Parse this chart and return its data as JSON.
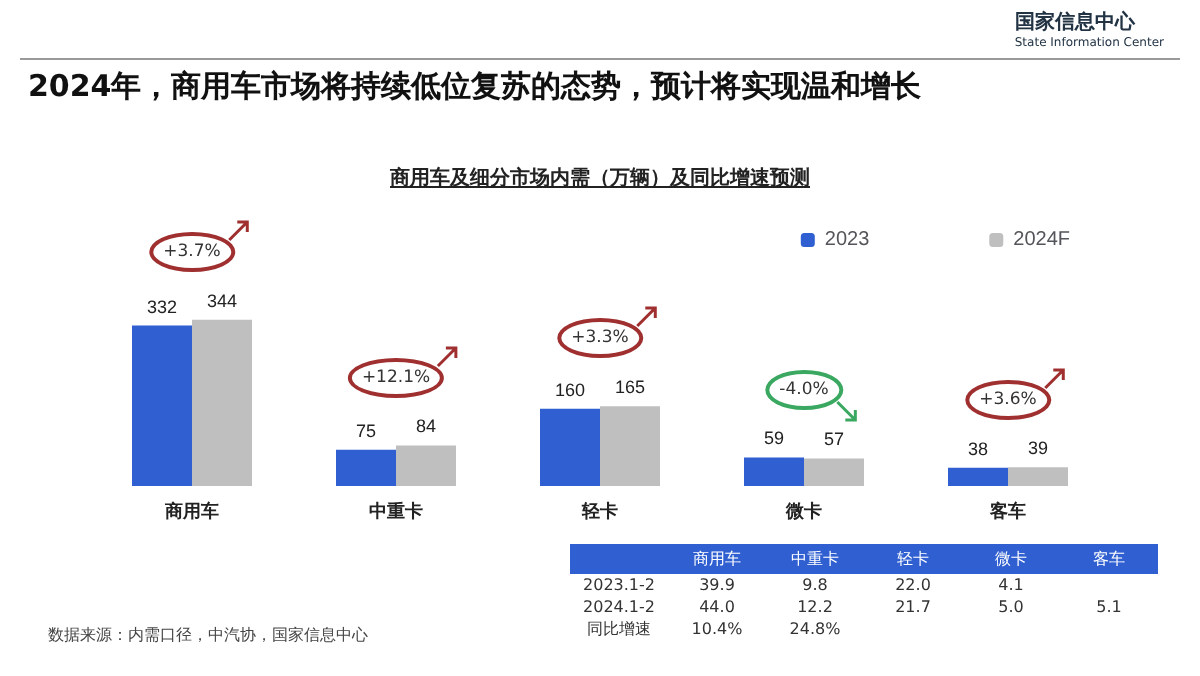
{
  "chart_data": [
    {
      "type": "bar",
      "title": "2024年，商用车市场将持续低位复苏的态势，预计将实现温和增长",
      "subtitle": "商用车及细分市场内需（万辆）及同比增速预测",
      "categories": [
        "商用车",
        "中重卡",
        "轻卡",
        "微卡",
        "客车"
      ],
      "series": [
        {
          "name": "2023",
          "color": "#2f5fd0",
          "values": [
            332,
            75,
            160,
            59,
            38
          ]
        },
        {
          "name": "2024F",
          "color": "#bfbfbf",
          "values": [
            344,
            84,
            165,
            57,
            39
          ]
        }
      ],
      "data_labels": true,
      "legend": "top right",
      "annotations": [
        "+3.7%",
        "+12.1%",
        "+3.3%",
        "-4.0%",
        "+3.6%",
        "数据来源：内需口径，中汽协，国家信息中心",
        "国家信息中心",
        "State Information Center"
      ]
    },
    {
      "type": "other",
      "categories": [
        "商用车",
        "中重卡",
        "轻卡",
        "微卡",
        "客车"
      ],
      "y_categories": [
        "2023.1-2",
        "2024.1-2",
        "同比增速"
      ],
      "cell_labels": [
        [
          "39.9",
          "9.8",
          "22.0",
          "4.1",
          null
        ],
        [
          "44.0",
          "12.2",
          "21.7",
          "5.0",
          "5.1"
        ],
        [
          "10.4%",
          "24.8%",
          null,
          null,
          null
        ]
      ]
    }
  ]
}
